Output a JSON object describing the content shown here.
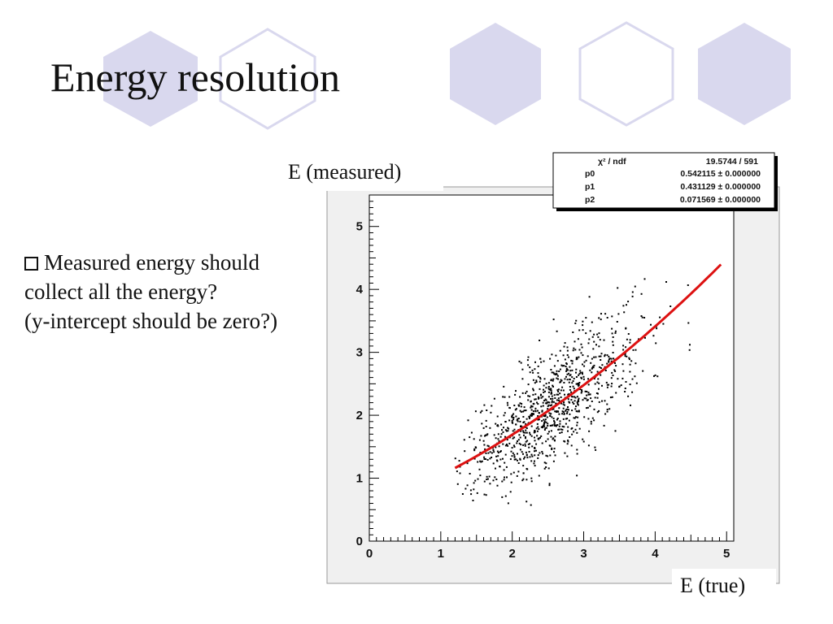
{
  "slide": {
    "title": "Energy resolution",
    "bullet_lines": [
      "Measured energy should",
      "collect all the energy?",
      "(y-intercept should be zero?)"
    ]
  },
  "chart_data": {
    "type": "scatter",
    "ylabel": "E (measured)",
    "xlabel": "E (true)",
    "xlim": [
      0,
      5.1
    ],
    "ylim": [
      0,
      5.5
    ],
    "x_ticks": [
      0,
      1,
      2,
      3,
      4,
      5
    ],
    "y_ticks": [
      0,
      1,
      2,
      3,
      4,
      5
    ],
    "grid": false,
    "marker_color": "#000000",
    "fit": {
      "color": "#dd1111",
      "function": "quadratic: p0 + p1*x + p2*x^2",
      "x_range": [
        1.2,
        4.92
      ],
      "p0": 0.542115,
      "p1": 0.431129,
      "p2": 0.071569
    },
    "stats_box": {
      "rows": [
        {
          "label": "χ² / ndf",
          "value": "19.5744 / 591"
        },
        {
          "label": "p0",
          "value": "0.542115 ± 0.000000"
        },
        {
          "label": "p1",
          "value": "0.431129 ± 0.000000"
        },
        {
          "label": "p2",
          "value": "0.071569 ± 0.000000"
        }
      ]
    },
    "scatter_distribution": {
      "n_points": 1000,
      "x_range": [
        1.2,
        5.0
      ],
      "x_mean": 2.55,
      "y_around_fit_sigma": 0.42,
      "seed": 7
    }
  }
}
